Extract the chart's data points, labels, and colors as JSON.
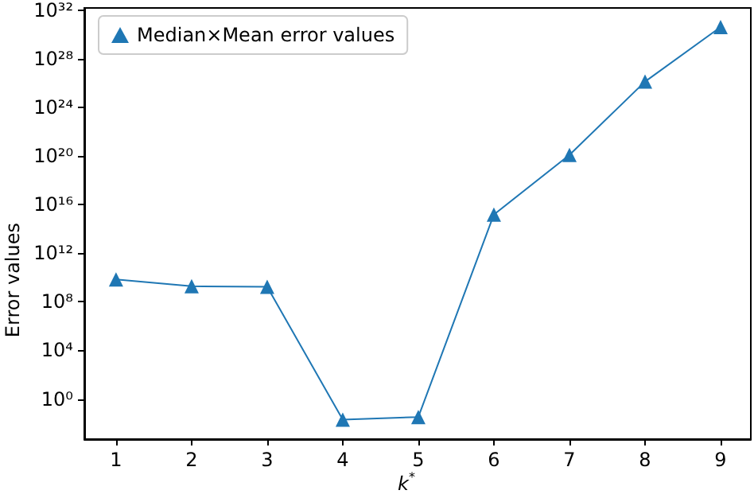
{
  "chart_data": {
    "type": "line",
    "xlabel": "k$^{*}$",
    "ylabel": "Error values",
    "x": [
      1,
      2,
      3,
      4,
      5,
      6,
      7,
      8,
      9
    ],
    "series": [
      {
        "name": "Median×Mean error values",
        "color": "#1f77b4",
        "values": [
          7000000000.0,
          1900000000.0,
          1700000000.0,
          0.02,
          0.033,
          1500000000000000.0,
          1.2e+20,
          1.3e+26,
          4e+30
        ]
      }
    ],
    "xlim": [
      0.58,
      9.4
    ],
    "xticks": [
      1,
      2,
      3,
      4,
      5,
      6,
      7,
      8,
      9
    ],
    "ylim": [
      0.0005,
      1.5e+32
    ],
    "yticks": [
      {
        "value": 1,
        "label": "10⁰"
      },
      {
        "value": 10000.0,
        "label": "10⁴"
      },
      {
        "value": 100000000.0,
        "label": "10⁸"
      },
      {
        "value": 1000000000000.0,
        "label": "10¹²"
      },
      {
        "value": 1e+16,
        "label": "10¹⁶"
      },
      {
        "value": 1e+20,
        "label": "10²⁰"
      },
      {
        "value": 1e+24,
        "label": "10²⁴"
      },
      {
        "value": 1e+28,
        "label": "10²⁸"
      },
      {
        "value": 1e+32,
        "label": "10³²"
      }
    ],
    "log": "y",
    "grid": false,
    "legend": "top left",
    "marker": "triangle",
    "line_style": "solid"
  }
}
